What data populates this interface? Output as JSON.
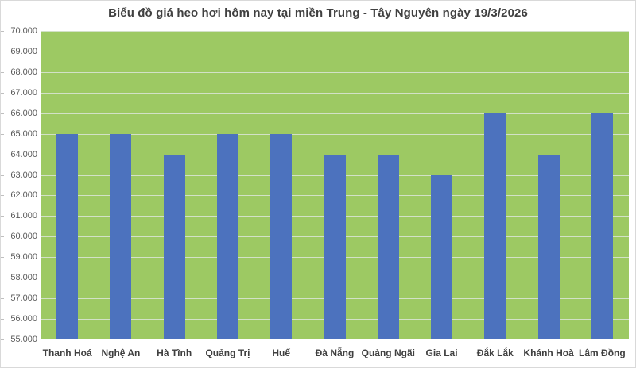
{
  "chart_data": {
    "type": "bar",
    "title": "Biểu đồ giá heo hơi hôm nay tại miền Trung - Tây Nguyên ngày 19/3/2026",
    "categories": [
      "Thanh Hoá",
      "Nghệ An",
      "Hà Tĩnh",
      "Quảng Trị",
      "Huế",
      "Đà Nẵng",
      "Quảng Ngãi",
      "Gia Lai",
      "Đắk Lắk",
      "Khánh Hoà",
      "Lâm Đồng"
    ],
    "values": [
      65000,
      65000,
      64000,
      65000,
      65000,
      64000,
      64000,
      63000,
      66000,
      64000,
      66000
    ],
    "xlabel": "",
    "ylabel": "",
    "ylim": [
      55000,
      70000
    ],
    "ytick_interval": 1000,
    "ytick_values": [
      55000,
      56000,
      57000,
      58000,
      59000,
      60000,
      61000,
      62000,
      63000,
      64000,
      65000,
      66000,
      67000,
      68000,
      69000,
      70000
    ],
    "ytick_labels": [
      "55.000",
      "56.000",
      "57.000",
      "58.000",
      "59.000",
      "60.000",
      "61.000",
      "62.000",
      "63.000",
      "64.000",
      "65.000",
      "66.000",
      "67.000",
      "68.000",
      "69.000",
      "70.000"
    ],
    "grid": true,
    "legend": "none",
    "colors": {
      "bar": "#4C72BE",
      "plot_background": "#9DC963",
      "gridline": "#DCE5D8",
      "border": "#D9D9D9",
      "background": "#FFFFFF",
      "title_text": "#404040",
      "axis_text": "#595959",
      "category_text": "#404040"
    }
  }
}
